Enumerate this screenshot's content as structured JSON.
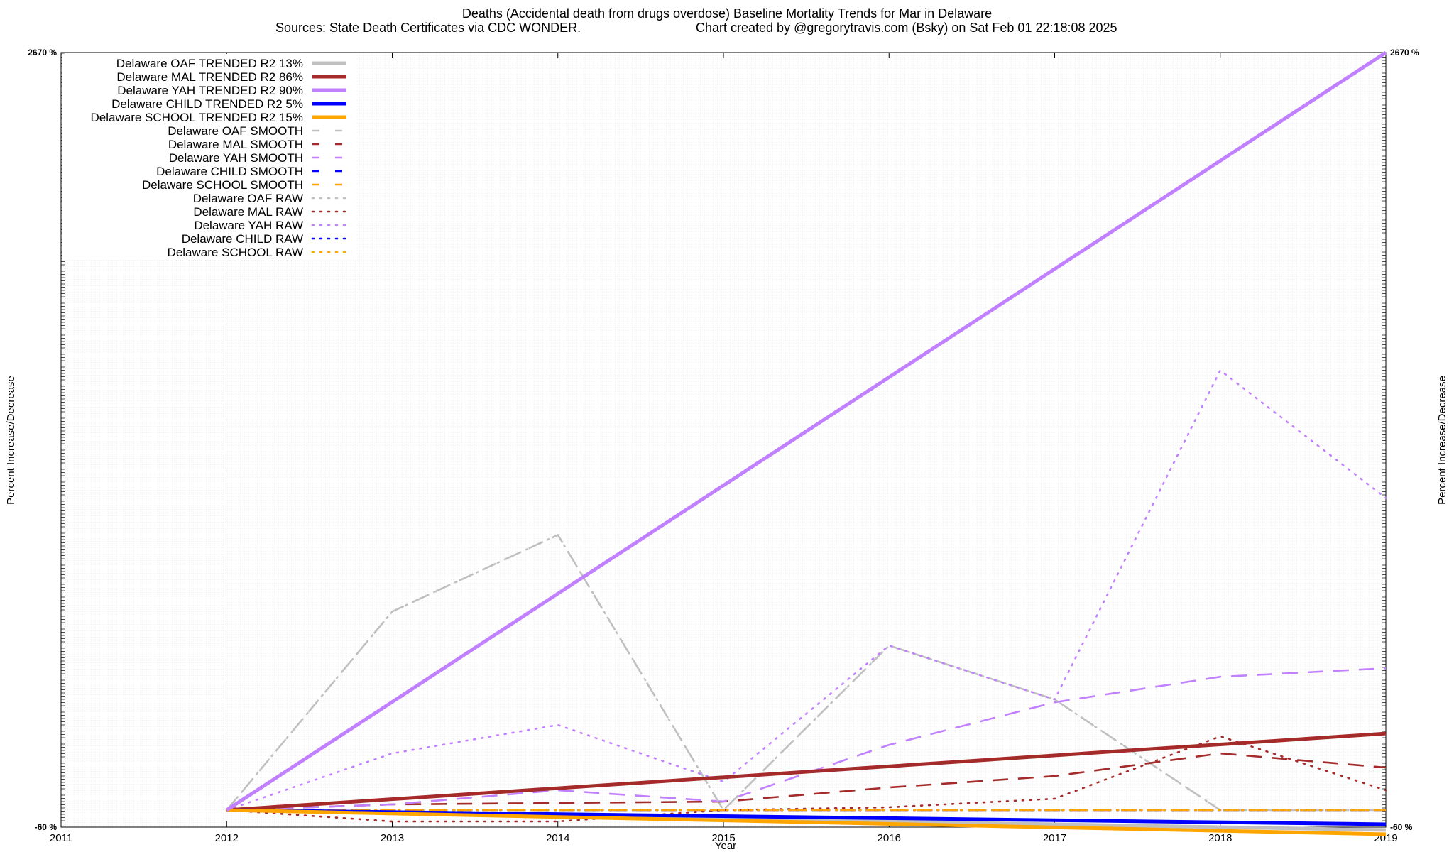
{
  "chart_data": {
    "type": "line",
    "title": "Deaths (Accidental death from drugs overdose)  Baseline Mortality Trends for Mar in Delaware",
    "subtitle_source": "Sources: State Death Certificates via CDC WONDER.",
    "subtitle_credit": "Chart created by @gregorytravis.com (Bsky) on Sat Feb 01 22:18:08 2025",
    "xlabel": "Year",
    "ylabel": "Percent Increase/Decrease",
    "ylabel_right": "Percent Increase/Decrease",
    "xlim": [
      2011,
      2019
    ],
    "ylim": [
      -60,
      2670
    ],
    "x_ticks": [
      "2011",
      "2012",
      "2013",
      "2014",
      "2015",
      "2016",
      "2017",
      "2018",
      "2019"
    ],
    "y_top_tick_label": "2670 %",
    "y_bottom_tick_label": "-60 %",
    "grid": true,
    "legend_position": "top-left",
    "series": [
      {
        "name": "Delaware OAF TRENDED R2  13%",
        "style": "solid",
        "color": "#c0c0c0",
        "x": [
          2012,
          2019
        ],
        "y": [
          0,
          -70
        ]
      },
      {
        "name": "Delaware MAL TRENDED R2  86%",
        "style": "solid",
        "color": "#a52a2a",
        "x": [
          2012,
          2019
        ],
        "y": [
          0,
          270
        ]
      },
      {
        "name": "Delaware YAH TRENDED R2  90%",
        "style": "solid",
        "color": "#c080ff",
        "x": [
          2012,
          2019
        ],
        "y": [
          0,
          2670
        ]
      },
      {
        "name": "Delaware CHILD TRENDED R2  5%",
        "style": "solid",
        "color": "#0000ff",
        "x": [
          2012,
          2019
        ],
        "y": [
          0,
          -50
        ]
      },
      {
        "name": "Delaware SCHOOL TRENDED R2  15%",
        "style": "solid",
        "color": "#ffa500",
        "x": [
          2012,
          2019
        ],
        "y": [
          0,
          -85
        ]
      },
      {
        "name": "Delaware OAF SMOOTH",
        "style": "dashed",
        "color": "#c0c0c0",
        "x": [
          2012,
          2013,
          2014,
          2015,
          2016,
          2017,
          2018,
          2019
        ],
        "y": [
          0,
          700,
          970,
          0,
          580,
          390,
          0,
          0
        ]
      },
      {
        "name": "Delaware MAL SMOOTH",
        "style": "dashed",
        "color": "#a52a2a",
        "x": [
          2012,
          2013,
          2014,
          2015,
          2016,
          2017,
          2018,
          2019
        ],
        "y": [
          0,
          20,
          25,
          30,
          80,
          120,
          200,
          150
        ]
      },
      {
        "name": "Delaware YAH SMOOTH",
        "style": "dashed",
        "color": "#c080ff",
        "x": [
          2012,
          2013,
          2014,
          2015,
          2016,
          2017,
          2018,
          2019
        ],
        "y": [
          0,
          20,
          70,
          30,
          230,
          380,
          470,
          500
        ]
      },
      {
        "name": "Delaware CHILD SMOOTH",
        "style": "dashed",
        "color": "#0000ff",
        "x": [
          2012,
          2013,
          2014,
          2015,
          2016,
          2017,
          2018,
          2019
        ],
        "y": [
          0,
          0,
          0,
          0,
          0,
          0,
          0,
          0
        ]
      },
      {
        "name": "Delaware SCHOOL SMOOTH",
        "style": "dashed",
        "color": "#ffa500",
        "x": [
          2012,
          2013,
          2014,
          2015,
          2016,
          2017,
          2018,
          2019
        ],
        "y": [
          0,
          0,
          0,
          0,
          0,
          0,
          0,
          0
        ]
      },
      {
        "name": "Delaware OAF RAW",
        "style": "dotted",
        "color": "#c0c0c0",
        "x": [
          2012,
          2013,
          2014,
          2015,
          2016,
          2017,
          2018,
          2019
        ],
        "y": [
          0,
          700,
          970,
          0,
          580,
          390,
          0,
          0
        ]
      },
      {
        "name": "Delaware MAL RAW",
        "style": "dotted",
        "color": "#a52a2a",
        "x": [
          2012,
          2013,
          2014,
          2015,
          2016,
          2017,
          2018,
          2019
        ],
        "y": [
          0,
          -40,
          -40,
          0,
          10,
          40,
          260,
          70
        ]
      },
      {
        "name": "Delaware YAH RAW",
        "style": "dotted",
        "color": "#c080ff",
        "x": [
          2012,
          2013,
          2014,
          2015,
          2016,
          2017,
          2018,
          2019
        ],
        "y": [
          0,
          200,
          300,
          100,
          580,
          390,
          1550,
          1100
        ]
      },
      {
        "name": "Delaware CHILD RAW",
        "style": "dotted",
        "color": "#0000ff",
        "x": [
          2012,
          2013,
          2014,
          2015,
          2016,
          2017,
          2018,
          2019
        ],
        "y": [
          0,
          0,
          0,
          0,
          0,
          0,
          0,
          0
        ]
      },
      {
        "name": "Delaware SCHOOL RAW",
        "style": "dotted",
        "color": "#ffa500",
        "x": [
          2012,
          2013,
          2014,
          2015,
          2016,
          2017,
          2018,
          2019
        ],
        "y": [
          0,
          0,
          0,
          0,
          0,
          0,
          0,
          0
        ]
      }
    ]
  }
}
